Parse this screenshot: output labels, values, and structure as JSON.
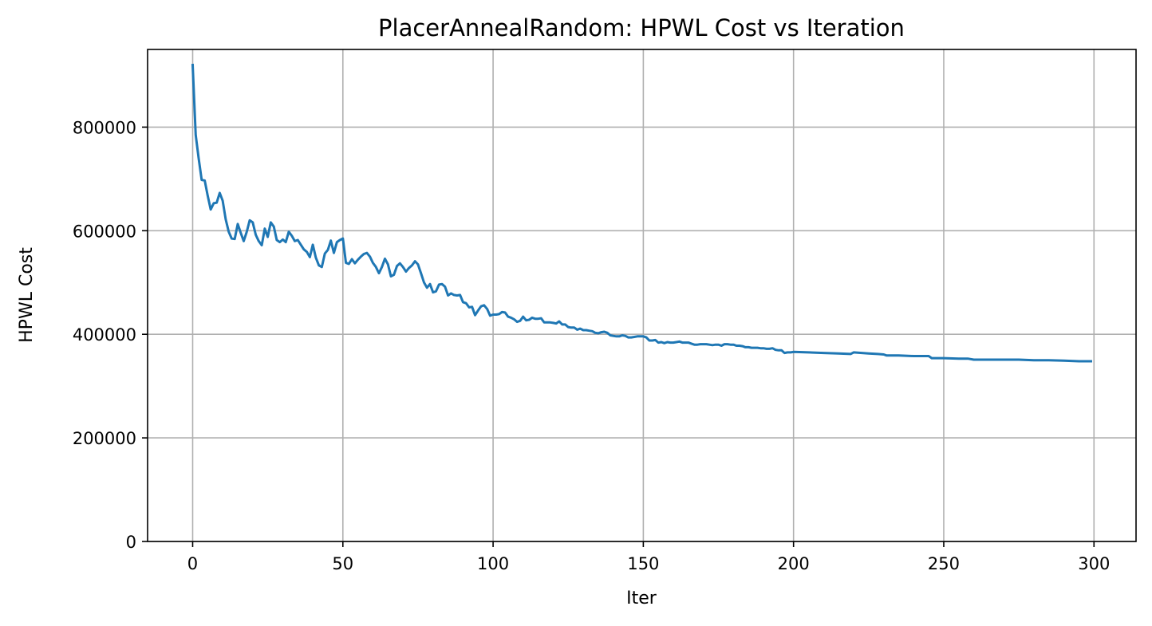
{
  "chart_data": {
    "type": "line",
    "title": "PlacerAnnealRandom: HPWL Cost vs Iteration",
    "xlabel": "Iter",
    "ylabel": "HPWL Cost",
    "xlim": [
      -15,
      314
    ],
    "ylim": [
      0,
      950000
    ],
    "xticks": [
      0,
      50,
      100,
      150,
      200,
      250,
      300
    ],
    "yticks": [
      0,
      200000,
      400000,
      600000,
      800000
    ],
    "grid": true,
    "series": [
      {
        "color": "#1f77b4",
        "points": [
          [
            0,
            920000
          ],
          [
            1,
            785000
          ],
          [
            2,
            740000
          ],
          [
            3,
            698000
          ],
          [
            4,
            697000
          ],
          [
            5,
            668000
          ],
          [
            6,
            641000
          ],
          [
            7,
            653000
          ],
          [
            8,
            654000
          ],
          [
            9,
            673000
          ],
          [
            10,
            658000
          ],
          [
            11,
            622000
          ],
          [
            12,
            598000
          ],
          [
            13,
            585000
          ],
          [
            14,
            584000
          ],
          [
            15,
            613000
          ],
          [
            16,
            596000
          ],
          [
            17,
            580000
          ],
          [
            18,
            598000
          ],
          [
            19,
            620000
          ],
          [
            20,
            616000
          ],
          [
            21,
            592000
          ],
          [
            22,
            580000
          ],
          [
            23,
            572000
          ],
          [
            24,
            604000
          ],
          [
            25,
            588000
          ],
          [
            26,
            616000
          ],
          [
            27,
            608000
          ],
          [
            28,
            582000
          ],
          [
            29,
            578000
          ],
          [
            30,
            583000
          ],
          [
            31,
            578000
          ],
          [
            32,
            598000
          ],
          [
            33,
            590000
          ],
          [
            34,
            580000
          ],
          [
            35,
            582000
          ],
          [
            36,
            573000
          ],
          [
            37,
            564000
          ],
          [
            38,
            559000
          ],
          [
            39,
            549000
          ],
          [
            40,
            573000
          ],
          [
            41,
            548000
          ],
          [
            42,
            533000
          ],
          [
            43,
            530000
          ],
          [
            44,
            556000
          ],
          [
            45,
            563000
          ],
          [
            46,
            581000
          ],
          [
            47,
            557000
          ],
          [
            48,
            578000
          ],
          [
            49,
            582000
          ],
          [
            50,
            585000
          ],
          [
            51,
            538000
          ],
          [
            52,
            536000
          ],
          [
            53,
            545000
          ],
          [
            54,
            537000
          ],
          [
            55,
            544000
          ],
          [
            56,
            550000
          ],
          [
            57,
            555000
          ],
          [
            58,
            557000
          ],
          [
            59,
            550000
          ],
          [
            60,
            538000
          ],
          [
            61,
            530000
          ],
          [
            62,
            518000
          ],
          [
            63,
            530000
          ],
          [
            64,
            546000
          ],
          [
            65,
            535000
          ],
          [
            66,
            512000
          ],
          [
            67,
            515000
          ],
          [
            68,
            532000
          ],
          [
            69,
            537000
          ],
          [
            70,
            530000
          ],
          [
            71,
            521000
          ],
          [
            72,
            528000
          ],
          [
            73,
            533000
          ],
          [
            74,
            541000
          ],
          [
            75,
            535000
          ],
          [
            76,
            518000
          ],
          [
            77,
            500000
          ],
          [
            78,
            490000
          ],
          [
            79,
            497000
          ],
          [
            80,
            481000
          ],
          [
            81,
            483000
          ],
          [
            82,
            496000
          ],
          [
            83,
            497000
          ],
          [
            84,
            492000
          ],
          [
            85,
            475000
          ],
          [
            86,
            479000
          ],
          [
            87,
            476000
          ],
          [
            88,
            475000
          ],
          [
            89,
            476000
          ],
          [
            90,
            462000
          ],
          [
            91,
            460000
          ],
          [
            92,
            452000
          ],
          [
            93,
            453000
          ],
          [
            94,
            437000
          ],
          [
            95,
            446000
          ],
          [
            96,
            454000
          ],
          [
            97,
            456000
          ],
          [
            98,
            449000
          ],
          [
            99,
            436000
          ],
          [
            100,
            438000
          ],
          [
            101,
            438000
          ],
          [
            102,
            439000
          ],
          [
            103,
            443000
          ],
          [
            104,
            442000
          ],
          [
            105,
            434000
          ],
          [
            106,
            432000
          ],
          [
            107,
            429000
          ],
          [
            108,
            424000
          ],
          [
            109,
            426000
          ],
          [
            110,
            434000
          ],
          [
            111,
            427000
          ],
          [
            112,
            428000
          ],
          [
            113,
            432000
          ],
          [
            114,
            430000
          ],
          [
            115,
            430000
          ],
          [
            116,
            431000
          ],
          [
            117,
            423000
          ],
          [
            118,
            423000
          ],
          [
            119,
            423000
          ],
          [
            120,
            422000
          ],
          [
            121,
            421000
          ],
          [
            122,
            425000
          ],
          [
            123,
            419000
          ],
          [
            124,
            419000
          ],
          [
            125,
            414000
          ],
          [
            126,
            413000
          ],
          [
            127,
            413000
          ],
          [
            128,
            409000
          ],
          [
            129,
            411000
          ],
          [
            130,
            408000
          ],
          [
            131,
            408000
          ],
          [
            132,
            407000
          ],
          [
            133,
            406000
          ],
          [
            134,
            403000
          ],
          [
            135,
            402000
          ],
          [
            136,
            404000
          ],
          [
            137,
            405000
          ],
          [
            138,
            403000
          ],
          [
            139,
            398000
          ],
          [
            140,
            397000
          ],
          [
            141,
            396000
          ],
          [
            142,
            396000
          ],
          [
            143,
            398000
          ],
          [
            144,
            397000
          ],
          [
            145,
            394000
          ],
          [
            146,
            394000
          ],
          [
            147,
            395000
          ],
          [
            148,
            396000
          ],
          [
            149,
            396000
          ],
          [
            150,
            396000
          ],
          [
            151,
            394000
          ],
          [
            152,
            388000
          ],
          [
            153,
            388000
          ],
          [
            154,
            389000
          ],
          [
            155,
            384000
          ],
          [
            156,
            385000
          ],
          [
            157,
            383000
          ],
          [
            158,
            385000
          ],
          [
            159,
            384000
          ],
          [
            160,
            384000
          ],
          [
            161,
            385000
          ],
          [
            162,
            386000
          ],
          [
            163,
            384000
          ],
          [
            164,
            384000
          ],
          [
            165,
            384000
          ],
          [
            166,
            382000
          ],
          [
            167,
            380000
          ],
          [
            168,
            380000
          ],
          [
            169,
            381000
          ],
          [
            170,
            381000
          ],
          [
            171,
            381000
          ],
          [
            172,
            380000
          ],
          [
            173,
            379000
          ],
          [
            174,
            380000
          ],
          [
            175,
            380000
          ],
          [
            176,
            378000
          ],
          [
            177,
            381000
          ],
          [
            178,
            381000
          ],
          [
            179,
            380000
          ],
          [
            180,
            380000
          ],
          [
            181,
            378000
          ],
          [
            182,
            378000
          ],
          [
            183,
            377000
          ],
          [
            184,
            375000
          ],
          [
            185,
            375000
          ],
          [
            186,
            374000
          ],
          [
            187,
            374000
          ],
          [
            188,
            374000
          ],
          [
            189,
            373000
          ],
          [
            190,
            373000
          ],
          [
            191,
            372000
          ],
          [
            192,
            372000
          ],
          [
            193,
            373000
          ],
          [
            194,
            370000
          ],
          [
            195,
            369000
          ],
          [
            196,
            369000
          ],
          [
            197,
            364000
          ],
          [
            198,
            365000
          ],
          [
            199,
            365000
          ],
          [
            200,
            366000
          ],
          [
            205,
            365000
          ],
          [
            210,
            364000
          ],
          [
            215,
            363000
          ],
          [
            219,
            362000
          ],
          [
            220,
            365000
          ],
          [
            225,
            363000
          ],
          [
            228,
            362000
          ],
          [
            230,
            361000
          ],
          [
            231,
            359000
          ],
          [
            235,
            359000
          ],
          [
            240,
            358000
          ],
          [
            245,
            358000
          ],
          [
            246,
            354000
          ],
          [
            250,
            354000
          ],
          [
            255,
            353000
          ],
          [
            258,
            353000
          ],
          [
            260,
            351000
          ],
          [
            265,
            351000
          ],
          [
            270,
            351000
          ],
          [
            275,
            351000
          ],
          [
            280,
            350000
          ],
          [
            285,
            350000
          ],
          [
            290,
            349000
          ],
          [
            295,
            348000
          ],
          [
            299,
            348000
          ]
        ]
      }
    ]
  }
}
